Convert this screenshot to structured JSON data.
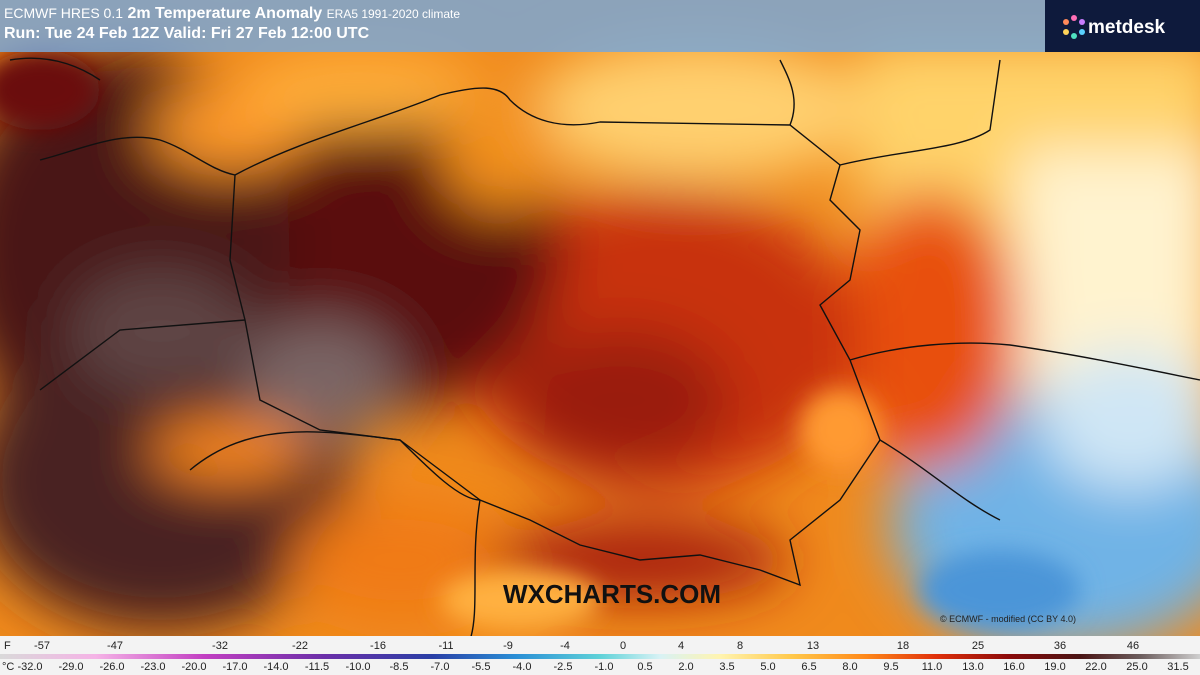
{
  "header": {
    "line1_prefix": "ECMWF HRES 0.1",
    "line1_main": "2m Temperature Anomaly",
    "line1_suffix": "ERA5 1991-2020 climate",
    "line2": "Run: Tue 24 Feb 12Z Valid: Fri 27 Feb 12:00 UTC"
  },
  "logo": "metdesk",
  "watermark": "WXCHARTS.COM",
  "credit": "© ECMWF - modified (CC BY 4.0)",
  "legend": {
    "f_unit": "F",
    "f_labels": [
      "-57",
      "-47",
      "-32",
      "-22",
      "-16",
      "-11",
      "-9",
      "-4",
      "0",
      "4",
      "8",
      "13",
      "18",
      "25",
      "36",
      "46"
    ],
    "c_unit": "°C",
    "c_labels": [
      "-32.0",
      "-29.0",
      "-26.0",
      "-23.0",
      "-20.0",
      "-17.0",
      "-14.0",
      "-11.5",
      "-10.0",
      "-8.5",
      "-7.0",
      "-5.5",
      "-4.0",
      "-2.5",
      "-1.0",
      "0.5",
      "2.0",
      "3.5",
      "5.0",
      "6.5",
      "8.0",
      "9.5",
      "11.0",
      "13.0",
      "16.0",
      "19.0",
      "22.0",
      "25.0",
      "31.5"
    ]
  }
}
